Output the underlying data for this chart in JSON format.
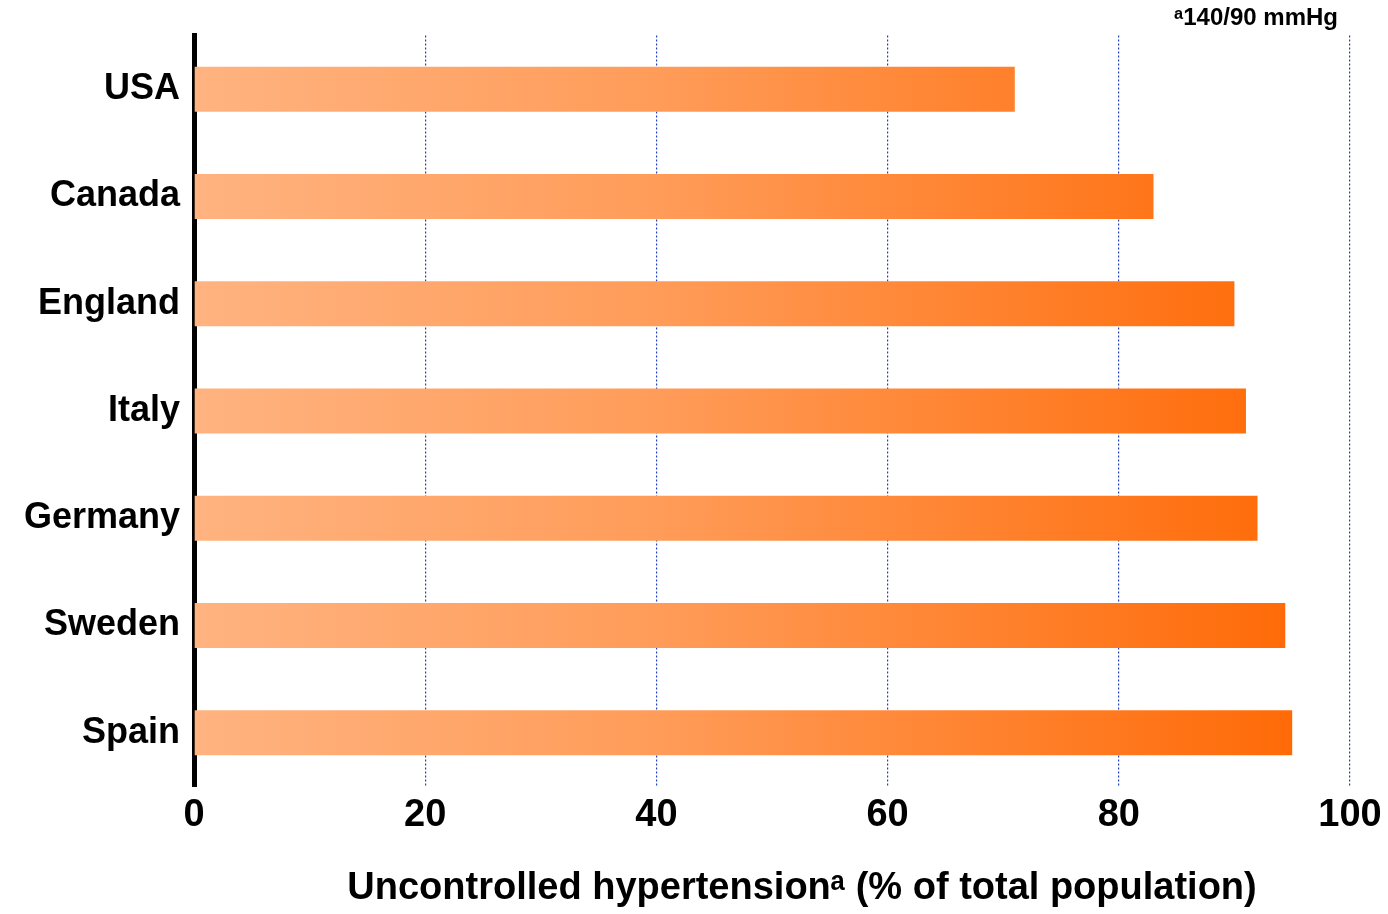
{
  "chart_data": {
    "type": "bar",
    "orientation": "horizontal",
    "categories": [
      "USA",
      "Canada",
      "England",
      "Italy",
      "Germany",
      "Sweden",
      "Spain"
    ],
    "values": [
      71,
      83,
      90,
      91,
      92,
      94.4,
      95
    ],
    "color": "#ff6600",
    "xlim": [
      0,
      100
    ],
    "xticks": [
      0,
      20,
      40,
      60,
      80,
      100
    ],
    "grid": "x",
    "legend": false,
    "xlabel": "Uncontrolled hypertensionᵃ (% of total population)",
    "annotations": [
      "ᵃ140/90 mmHg"
    ]
  }
}
